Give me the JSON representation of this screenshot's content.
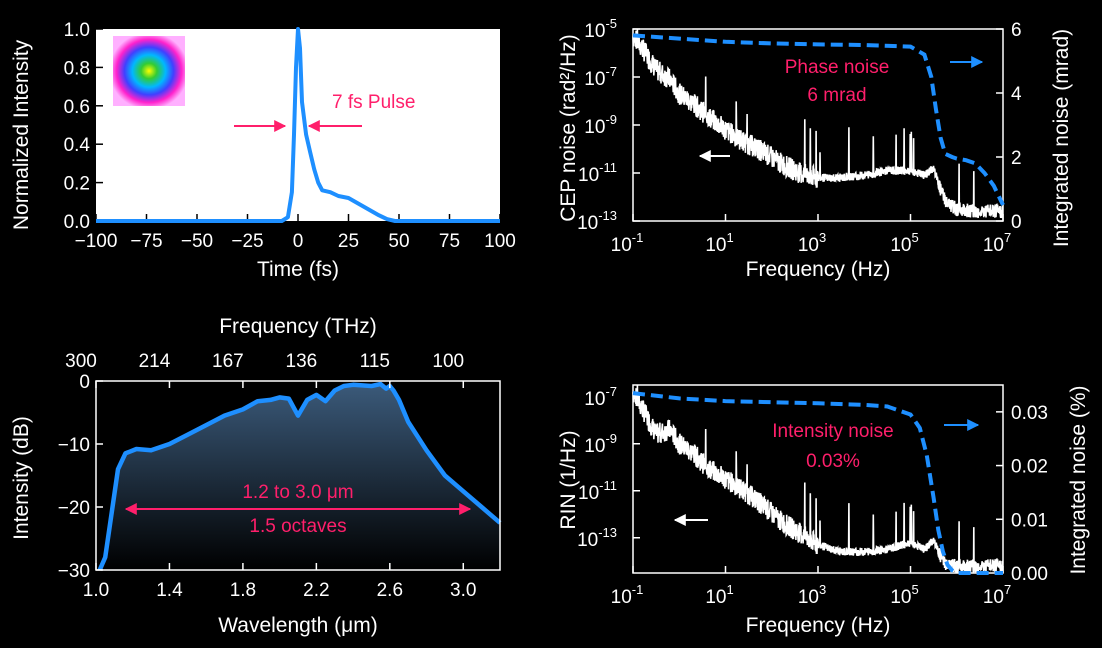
{
  "colors": {
    "background": "#000000",
    "panel_plot_bg": "#ffffff",
    "trace": "#1e8fff",
    "annotation": "#ff1f6b",
    "noise_trace": "#ffffff"
  },
  "chart_data": [
    {
      "id": "pulse",
      "type": "line",
      "xlabel": "Time (fs)",
      "ylabel": "Normalized Intensity",
      "xlim": [
        -100,
        100
      ],
      "ylim": [
        0,
        1.0
      ],
      "xticks": [
        -100,
        -75,
        -50,
        -25,
        0,
        25,
        50,
        75,
        100
      ],
      "xtick_labels": [
        "−100",
        "−75",
        "−50",
        "−25",
        "0",
        "25",
        "50",
        "75",
        "100"
      ],
      "yticks": [
        0.0,
        0.2,
        0.4,
        0.6,
        0.8,
        1.0
      ],
      "ytick_labels": [
        "0.0",
        "0.2",
        "0.4",
        "0.6",
        "0.8",
        "1.0"
      ],
      "annotation": "7 fs Pulse",
      "inset": "beam profile",
      "x": [
        -100,
        -8,
        -5,
        -3,
        -2,
        -1,
        0,
        1,
        2,
        4,
        6,
        8,
        10,
        12,
        16,
        20,
        25,
        30,
        35,
        40,
        44,
        48,
        100
      ],
      "y": [
        0,
        0,
        0.02,
        0.15,
        0.45,
        0.8,
        1.0,
        0.9,
        0.62,
        0.45,
        0.36,
        0.27,
        0.2,
        0.16,
        0.15,
        0.13,
        0.12,
        0.09,
        0.06,
        0.03,
        0.01,
        0.0,
        0.0
      ]
    },
    {
      "id": "cep",
      "type": "line",
      "xlabel": "Frequency (Hz)",
      "ylabel": "CEP noise (rad²/Hz)",
      "y2label": "Integrated noise (mrad)",
      "xscale": "log",
      "xlim_exp": [
        -1,
        7
      ],
      "xtick_exps": [
        "-1",
        "1",
        "3",
        "5",
        "7"
      ],
      "ylim_exp": [
        -13,
        -5
      ],
      "ytick_exps": [
        "-5",
        "-7",
        "-9",
        "-11",
        "-13"
      ],
      "y2lim": [
        0,
        6
      ],
      "y2ticks": [
        "0",
        "2",
        "4",
        "6"
      ],
      "annotation_line1": "Phase noise",
      "annotation_line2": "6 mrad",
      "series": [
        {
          "name": "CEP noise PSD",
          "axis": "left",
          "log_x": [
            -1,
            -0.8,
            -0.5,
            -0.2,
            0,
            0.3,
            0.6,
            1,
            1.4,
            1.8,
            2.2,
            2.6,
            3,
            3.5,
            4,
            4.5,
            5,
            5.3,
            5.5,
            5.65,
            5.8,
            6,
            6.5,
            7
          ],
          "log_y": [
            -5.3,
            -5.8,
            -6.7,
            -7.1,
            -7.7,
            -8.1,
            -8.6,
            -9.2,
            -9.7,
            -10.1,
            -10.6,
            -11.0,
            -11.2,
            -11.2,
            -11.1,
            -10.9,
            -10.9,
            -11.1,
            -10.8,
            -11.7,
            -12.3,
            -12.5,
            -12.6,
            -12.6
          ]
        },
        {
          "name": "Integrated noise",
          "axis": "right",
          "log_x": [
            -1,
            0,
            1,
            2,
            3,
            4,
            5,
            5.3,
            5.45,
            5.55,
            5.65,
            5.75,
            5.9,
            6,
            6.2,
            6.4,
            6.6,
            6.8,
            7
          ],
          "values": [
            5.8,
            5.7,
            5.6,
            5.55,
            5.52,
            5.5,
            5.45,
            5.2,
            4.5,
            3.5,
            2.6,
            2.1,
            2.0,
            1.95,
            1.9,
            1.8,
            1.5,
            1.1,
            0.5
          ]
        }
      ]
    },
    {
      "id": "spectrum",
      "type": "area",
      "xlabel": "Wavelength (μm)",
      "ylabel": "Intensity (dB)",
      "top_xlabel": "Frequency (THz)",
      "xlim": [
        1.0,
        3.2
      ],
      "ylim": [
        -30,
        0
      ],
      "xticks": [
        1.0,
        1.4,
        1.8,
        2.2,
        2.6,
        3.0
      ],
      "xtick_labels": [
        "1.0",
        "1.4",
        "1.8",
        "2.2",
        "2.6",
        "3.0"
      ],
      "yticks": [
        0,
        -10,
        -20,
        -30
      ],
      "ytick_labels": [
        "0",
        "−10",
        "−20",
        "−30"
      ],
      "top_ticks_um": [
        1.0,
        1.4,
        1.8,
        2.2,
        2.6,
        3.0
      ],
      "top_tick_labels": [
        "300",
        "214",
        "167",
        "136",
        "115",
        "100"
      ],
      "annotation_line1": "1.2 to 3.0 μm",
      "annotation_line2": "1.5 octaves",
      "x": [
        1.02,
        1.05,
        1.08,
        1.12,
        1.16,
        1.22,
        1.3,
        1.4,
        1.5,
        1.6,
        1.7,
        1.8,
        1.88,
        1.95,
        2.0,
        2.05,
        2.1,
        2.15,
        2.2,
        2.25,
        2.3,
        2.35,
        2.4,
        2.45,
        2.5,
        2.55,
        2.58,
        2.6,
        2.62,
        2.65,
        2.7,
        2.8,
        2.9,
        3.0,
        3.1,
        3.2
      ],
      "y": [
        -30,
        -28,
        -22,
        -14,
        -11.5,
        -10.8,
        -11,
        -10,
        -8.5,
        -7,
        -5.5,
        -4.5,
        -3.2,
        -3.0,
        -2.6,
        -2.8,
        -5.5,
        -3.0,
        -2.2,
        -3.2,
        -1.5,
        -0.8,
        -0.6,
        -0.7,
        -0.8,
        -0.5,
        -1.2,
        -0.8,
        -1.5,
        -3.0,
        -6.5,
        -11,
        -15,
        -17.5,
        -20,
        -22.5
      ]
    },
    {
      "id": "rin",
      "type": "line",
      "xlabel": "Frequency (Hz)",
      "ylabel": "RIN (1/Hz)",
      "y2label": "Integrated noise (%)",
      "xscale": "log",
      "xlim_exp": [
        -1,
        7
      ],
      "xtick_exps": [
        "-1",
        "1",
        "3",
        "5",
        "7"
      ],
      "ylim_exp": [
        -14.5,
        -6.5
      ],
      "ytick_exps": [
        "-7",
        "-9",
        "-11",
        "-13"
      ],
      "y2lim": [
        0,
        0.035
      ],
      "y2ticks": [
        "0.00",
        "0.01",
        "0.02",
        "0.03"
      ],
      "annotation_line1": "Intensity noise",
      "annotation_line2": "0.03%",
      "series": [
        {
          "name": "RIN PSD",
          "axis": "left",
          "log_x": [
            -1,
            -0.8,
            -0.5,
            -0.2,
            0,
            0.3,
            0.6,
            1,
            1.4,
            1.8,
            2.2,
            2.6,
            3,
            3.5,
            4,
            4.5,
            5,
            5.3,
            5.5,
            5.65,
            5.8,
            6,
            6.5,
            7
          ],
          "log_y": [
            -6.8,
            -7.5,
            -8.6,
            -8.4,
            -9.0,
            -9.4,
            -10.0,
            -10.5,
            -11.0,
            -11.6,
            -12.3,
            -12.8,
            -13.3,
            -13.6,
            -13.6,
            -13.5,
            -13.2,
            -13.5,
            -13.1,
            -13.8,
            -14.2,
            -14.2,
            -14.2,
            -14.2
          ]
        },
        {
          "name": "Integrated noise",
          "axis": "right",
          "log_x": [
            -1,
            0,
            1,
            2,
            3,
            4,
            4.5,
            5,
            5.2,
            5.35,
            5.5,
            5.6,
            5.7,
            5.8,
            5.9,
            6.0,
            7
          ],
          "values": [
            0.0335,
            0.0325,
            0.032,
            0.0318,
            0.0316,
            0.0313,
            0.031,
            0.0295,
            0.027,
            0.022,
            0.014,
            0.008,
            0.004,
            0.0015,
            0.0005,
            0.0,
            0.0
          ]
        }
      ]
    }
  ]
}
